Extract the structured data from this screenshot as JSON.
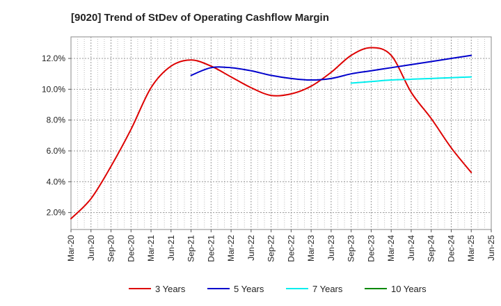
{
  "chart_data": {
    "type": "line",
    "title": "[9020]  Trend of StDev of Operating Cashflow Margin",
    "xlabel": "",
    "ylabel": "",
    "x_tick_labels": [
      "Mar-20",
      "Jun-20",
      "Sep-20",
      "Dec-20",
      "Mar-21",
      "Jun-21",
      "Sep-21",
      "Dec-21",
      "Mar-22",
      "Jun-22",
      "Sep-22",
      "Dec-22",
      "Mar-23",
      "Jun-23",
      "Sep-23",
      "Dec-23",
      "Mar-24",
      "Jun-24",
      "Sep-24",
      "Dec-24",
      "Mar-25",
      "Jun-25"
    ],
    "y_tick_labels": [
      "2.0%",
      "4.0%",
      "6.0%",
      "8.0%",
      "10.0%",
      "12.0%"
    ],
    "ylim": [
      0.9,
      13.4
    ],
    "grid": true,
    "legend_position": "bottom",
    "series": [
      {
        "name": "3 Years",
        "color": "#dd0000",
        "x": [
          "2020-03",
          "2020-06",
          "2020-09",
          "2020-12",
          "2021-03",
          "2021-06",
          "2021-09",
          "2021-12",
          "2022-03",
          "2022-06",
          "2022-09",
          "2022-12",
          "2023-03",
          "2023-06",
          "2023-09",
          "2023-12",
          "2024-03",
          "2024-06",
          "2024-09",
          "2024-12",
          "2025-03"
        ],
        "values": [
          1.6,
          2.9,
          5.0,
          7.4,
          10.1,
          11.5,
          11.9,
          11.5,
          10.8,
          10.1,
          9.6,
          9.7,
          10.2,
          11.1,
          12.2,
          12.7,
          12.2,
          9.8,
          8.1,
          6.2,
          4.6
        ]
      },
      {
        "name": "5 Years",
        "color": "#0000cc",
        "x": [
          "2021-09",
          "2021-12",
          "2022-03",
          "2022-06",
          "2022-09",
          "2022-12",
          "2023-03",
          "2023-06",
          "2023-09",
          "2023-12",
          "2024-03",
          "2024-06",
          "2024-09",
          "2024-12",
          "2025-03"
        ],
        "values": [
          10.9,
          11.4,
          11.4,
          11.2,
          10.9,
          10.7,
          10.6,
          10.7,
          11.0,
          11.2,
          11.4,
          11.6,
          11.8,
          12.0,
          12.2
        ]
      },
      {
        "name": "7 Years",
        "color": "#00eeee",
        "x": [
          "2023-09",
          "2023-12",
          "2024-03",
          "2024-06",
          "2024-09",
          "2024-12",
          "2025-03"
        ],
        "values": [
          10.4,
          10.5,
          10.6,
          10.65,
          10.7,
          10.75,
          10.8
        ]
      },
      {
        "name": "10 Years",
        "color": "#008800",
        "x": [],
        "values": []
      }
    ]
  }
}
